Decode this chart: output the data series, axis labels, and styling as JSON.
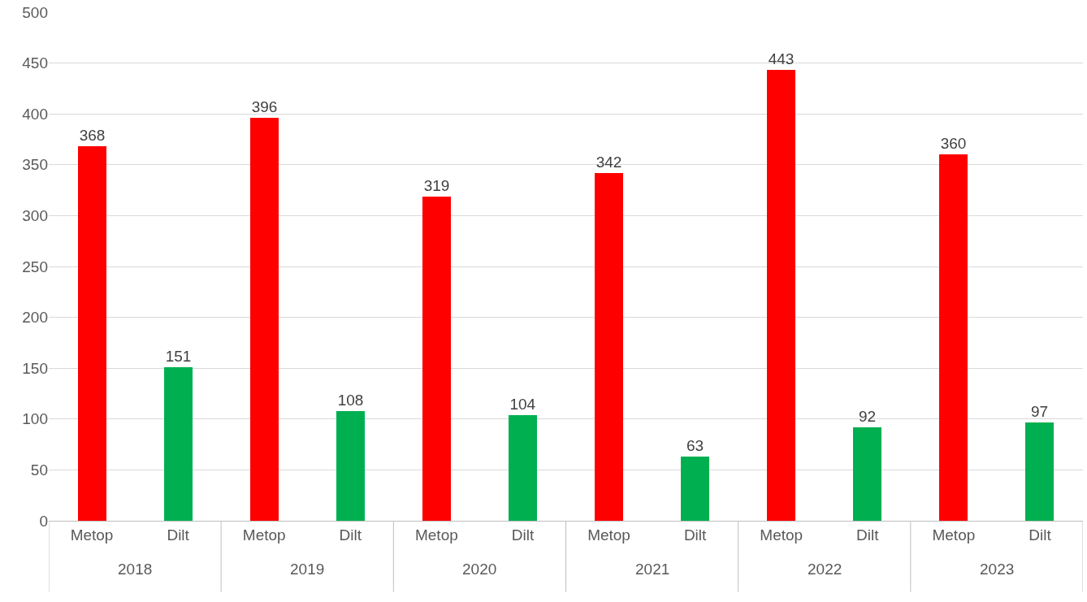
{
  "chart_data": {
    "type": "bar",
    "categories": [
      "Metop",
      "Dilt",
      "Metop",
      "Dilt",
      "Metop",
      "Dilt",
      "Metop",
      "Dilt",
      "Metop",
      "Dilt",
      "Metop",
      "Dilt"
    ],
    "values": [
      368,
      151,
      396,
      108,
      319,
      104,
      342,
      63,
      443,
      92,
      360,
      97
    ],
    "colors": [
      "#ff0000",
      "#00b050",
      "#ff0000",
      "#00b050",
      "#ff0000",
      "#00b050",
      "#ff0000",
      "#00b050",
      "#ff0000",
      "#00b050",
      "#ff0000",
      "#00b050"
    ],
    "annotations": [
      "2018",
      "2019",
      "2020",
      "2021",
      "2022",
      "2023"
    ],
    "ylim": [
      0,
      500
    ],
    "yticks": [
      0,
      50,
      100,
      150,
      200,
      250,
      300,
      350,
      400,
      450,
      500
    ],
    "grid": "y",
    "legend": false,
    "data_labels": true
  }
}
